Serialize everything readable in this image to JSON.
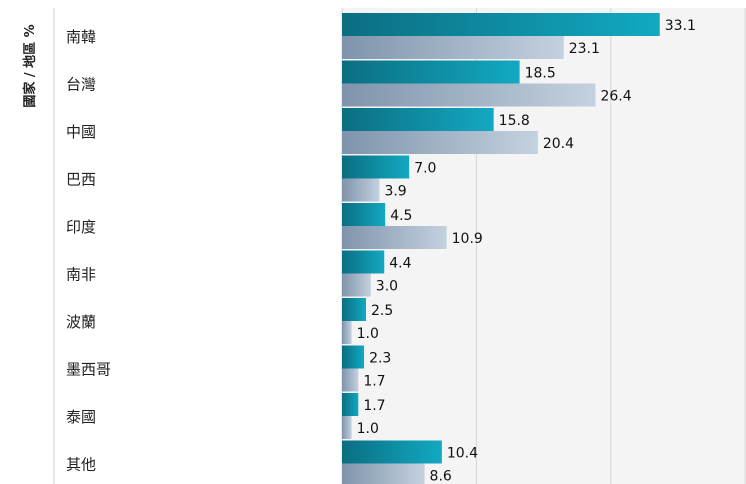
{
  "chart_data": {
    "type": "bar",
    "orientation": "horizontal",
    "ylabel": "國家 / 地區 %",
    "categories": [
      "南韓",
      "台灣",
      "中國",
      "巴西",
      "印度",
      "南非",
      "波蘭",
      "墨西哥",
      "泰國",
      "其他"
    ],
    "series": [
      {
        "values": [
          33.1,
          18.5,
          15.8,
          7.0,
          4.5,
          4.4,
          2.5,
          2.3,
          1.7,
          10.4
        ],
        "labels": [
          "33.1",
          "18.5",
          "15.8",
          "7.0",
          "4.5",
          "4.4",
          "2.5",
          "2.3",
          "1.7",
          "10.4"
        ],
        "color": "#0a8fa6"
      },
      {
        "values": [
          23.1,
          26.4,
          20.4,
          3.9,
          10.9,
          3.0,
          1.0,
          1.7,
          1.0,
          8.6
        ],
        "labels": [
          "23.1",
          "26.4",
          "20.4",
          "3.9",
          "10.9",
          "3.0",
          "1.0",
          "1.7",
          "1.0",
          "8.6"
        ],
        "color": "#a6b8cb"
      }
    ],
    "xlim": [
      0,
      40
    ],
    "grid": true,
    "legend": "none"
  }
}
